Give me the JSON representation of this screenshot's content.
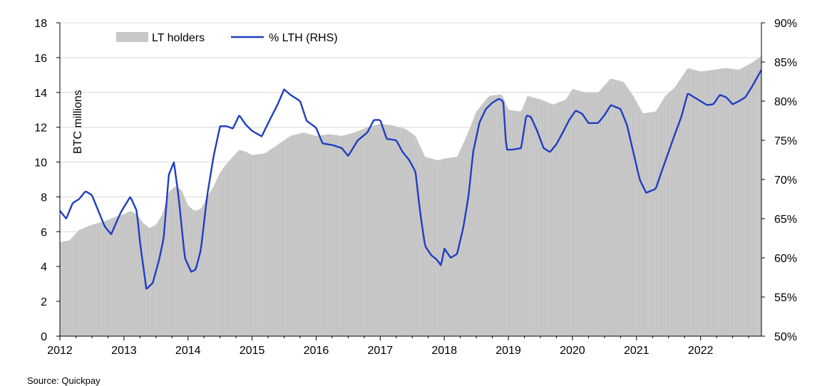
{
  "chart_data": {
    "type": "area",
    "ylabel": "BTC millions",
    "ylim": [
      0,
      18
    ],
    "y2lim": [
      0.5,
      0.9
    ],
    "y_ticks": [
      "0",
      "2",
      "4",
      "6",
      "8",
      "10",
      "12",
      "14",
      "16",
      "18"
    ],
    "y2_ticks": [
      "50%",
      "55%",
      "60%",
      "65%",
      "70%",
      "75%",
      "80%",
      "85%",
      "90%"
    ],
    "x_ticks": [
      "2012",
      "2013",
      "2014",
      "2015",
      "2016",
      "2017",
      "2018",
      "2019",
      "2020",
      "2021",
      "2022"
    ],
    "xlim": [
      2012,
      2022.95
    ],
    "grid": "horizontal",
    "legend_position": "top-left",
    "series": [
      {
        "name": "LT holders",
        "axis": "left",
        "kind": "area",
        "color": "#c8c8c8",
        "points": [
          [
            2012.0,
            5.4
          ],
          [
            2012.15,
            5.5
          ],
          [
            2012.3,
            6.1
          ],
          [
            2012.5,
            6.4
          ],
          [
            2012.7,
            6.6
          ],
          [
            2012.9,
            6.9
          ],
          [
            2013.0,
            7.0
          ],
          [
            2013.1,
            7.2
          ],
          [
            2013.2,
            7.0
          ],
          [
            2013.3,
            6.5
          ],
          [
            2013.4,
            6.2
          ],
          [
            2013.5,
            6.4
          ],
          [
            2013.6,
            7.0
          ],
          [
            2013.7,
            8.3
          ],
          [
            2013.8,
            8.6
          ],
          [
            2013.9,
            8.4
          ],
          [
            2014.0,
            7.5
          ],
          [
            2014.1,
            7.2
          ],
          [
            2014.2,
            7.3
          ],
          [
            2014.3,
            8.0
          ],
          [
            2014.4,
            8.6
          ],
          [
            2014.5,
            9.4
          ],
          [
            2014.6,
            9.9
          ],
          [
            2014.7,
            10.3
          ],
          [
            2014.8,
            10.7
          ],
          [
            2014.9,
            10.6
          ],
          [
            2015.0,
            10.4
          ],
          [
            2015.2,
            10.5
          ],
          [
            2015.4,
            11.0
          ],
          [
            2015.6,
            11.5
          ],
          [
            2015.8,
            11.7
          ],
          [
            2016.0,
            11.5
          ],
          [
            2016.2,
            11.6
          ],
          [
            2016.4,
            11.5
          ],
          [
            2016.6,
            11.7
          ],
          [
            2016.8,
            12.0
          ],
          [
            2017.0,
            12.2
          ],
          [
            2017.2,
            12.1
          ],
          [
            2017.4,
            11.9
          ],
          [
            2017.55,
            11.5
          ],
          [
            2017.7,
            10.3
          ],
          [
            2017.9,
            10.1
          ],
          [
            2018.0,
            10.2
          ],
          [
            2018.2,
            10.3
          ],
          [
            2018.35,
            11.5
          ],
          [
            2018.5,
            12.9
          ],
          [
            2018.7,
            13.8
          ],
          [
            2018.9,
            13.9
          ],
          [
            2019.0,
            13.0
          ],
          [
            2019.2,
            12.9
          ],
          [
            2019.3,
            13.8
          ],
          [
            2019.5,
            13.6
          ],
          [
            2019.7,
            13.3
          ],
          [
            2019.9,
            13.6
          ],
          [
            2020.0,
            14.2
          ],
          [
            2020.2,
            14.0
          ],
          [
            2020.4,
            14.0
          ],
          [
            2020.6,
            14.8
          ],
          [
            2020.8,
            14.6
          ],
          [
            2020.95,
            13.8
          ],
          [
            2021.1,
            12.8
          ],
          [
            2021.3,
            12.9
          ],
          [
            2021.45,
            13.8
          ],
          [
            2021.6,
            14.3
          ],
          [
            2021.8,
            15.4
          ],
          [
            2022.0,
            15.2
          ],
          [
            2022.2,
            15.3
          ],
          [
            2022.4,
            15.4
          ],
          [
            2022.6,
            15.3
          ],
          [
            2022.8,
            15.7
          ],
          [
            2022.95,
            16.1
          ]
        ]
      },
      {
        "name": "% LTH (RHS)",
        "axis": "right",
        "kind": "line",
        "color": "#1f3ec2",
        "points": [
          [
            2012.0,
            0.66
          ],
          [
            2012.1,
            0.65
          ],
          [
            2012.2,
            0.67
          ],
          [
            2012.3,
            0.675
          ],
          [
            2012.4,
            0.685
          ],
          [
            2012.5,
            0.68
          ],
          [
            2012.6,
            0.66
          ],
          [
            2012.7,
            0.64
          ],
          [
            2012.8,
            0.63
          ],
          [
            2012.95,
            0.658
          ],
          [
            2013.1,
            0.678
          ],
          [
            2013.2,
            0.66
          ],
          [
            2013.25,
            0.62
          ],
          [
            2013.35,
            0.56
          ],
          [
            2013.45,
            0.568
          ],
          [
            2013.55,
            0.598
          ],
          [
            2013.62,
            0.625
          ],
          [
            2013.7,
            0.706
          ],
          [
            2013.78,
            0.722
          ],
          [
            2013.85,
            0.68
          ],
          [
            2013.95,
            0.6
          ],
          [
            2014.05,
            0.582
          ],
          [
            2014.12,
            0.585
          ],
          [
            2014.2,
            0.61
          ],
          [
            2014.3,
            0.68
          ],
          [
            2014.4,
            0.73
          ],
          [
            2014.5,
            0.768
          ],
          [
            2014.6,
            0.768
          ],
          [
            2014.7,
            0.765
          ],
          [
            2014.8,
            0.782
          ],
          [
            2014.9,
            0.77
          ],
          [
            2015.0,
            0.762
          ],
          [
            2015.15,
            0.755
          ],
          [
            2015.3,
            0.78
          ],
          [
            2015.4,
            0.796
          ],
          [
            2015.5,
            0.815
          ],
          [
            2015.6,
            0.808
          ],
          [
            2015.75,
            0.8
          ],
          [
            2015.85,
            0.775
          ],
          [
            2016.0,
            0.766
          ],
          [
            2016.1,
            0.746
          ],
          [
            2016.25,
            0.744
          ],
          [
            2016.4,
            0.74
          ],
          [
            2016.5,
            0.73
          ],
          [
            2016.65,
            0.75
          ],
          [
            2016.8,
            0.76
          ],
          [
            2016.9,
            0.776
          ],
          [
            2017.0,
            0.776
          ],
          [
            2017.1,
            0.752
          ],
          [
            2017.25,
            0.75
          ],
          [
            2017.35,
            0.735
          ],
          [
            2017.45,
            0.725
          ],
          [
            2017.55,
            0.71
          ],
          [
            2017.62,
            0.66
          ],
          [
            2017.7,
            0.615
          ],
          [
            2017.8,
            0.603
          ],
          [
            2017.88,
            0.598
          ],
          [
            2017.95,
            0.59
          ],
          [
            2018.0,
            0.612
          ],
          [
            2018.1,
            0.6
          ],
          [
            2018.2,
            0.605
          ],
          [
            2018.3,
            0.64
          ],
          [
            2018.38,
            0.68
          ],
          [
            2018.45,
            0.735
          ],
          [
            2018.55,
            0.773
          ],
          [
            2018.65,
            0.79
          ],
          [
            2018.75,
            0.798
          ],
          [
            2018.85,
            0.803
          ],
          [
            2018.92,
            0.8
          ],
          [
            2018.97,
            0.738
          ],
          [
            2019.05,
            0.738
          ],
          [
            2019.2,
            0.74
          ],
          [
            2019.28,
            0.782
          ],
          [
            2019.35,
            0.78
          ],
          [
            2019.45,
            0.762
          ],
          [
            2019.55,
            0.74
          ],
          [
            2019.65,
            0.735
          ],
          [
            2019.75,
            0.745
          ],
          [
            2019.85,
            0.76
          ],
          [
            2019.95,
            0.776
          ],
          [
            2020.05,
            0.788
          ],
          [
            2020.15,
            0.784
          ],
          [
            2020.25,
            0.772
          ],
          [
            2020.4,
            0.772
          ],
          [
            2020.5,
            0.782
          ],
          [
            2020.6,
            0.795
          ],
          [
            2020.75,
            0.79
          ],
          [
            2020.85,
            0.77
          ],
          [
            2020.95,
            0.735
          ],
          [
            2021.05,
            0.7
          ],
          [
            2021.15,
            0.683
          ],
          [
            2021.3,
            0.688
          ],
          [
            2021.4,
            0.712
          ],
          [
            2021.5,
            0.735
          ],
          [
            2021.6,
            0.758
          ],
          [
            2021.7,
            0.78
          ],
          [
            2021.8,
            0.81
          ],
          [
            2021.9,
            0.805
          ],
          [
            2022.0,
            0.8
          ],
          [
            2022.1,
            0.795
          ],
          [
            2022.2,
            0.796
          ],
          [
            2022.3,
            0.808
          ],
          [
            2022.4,
            0.805
          ],
          [
            2022.5,
            0.796
          ],
          [
            2022.6,
            0.8
          ],
          [
            2022.7,
            0.805
          ],
          [
            2022.8,
            0.818
          ],
          [
            2022.95,
            0.84
          ]
        ]
      }
    ]
  },
  "source_note": "Source: Quickpay"
}
